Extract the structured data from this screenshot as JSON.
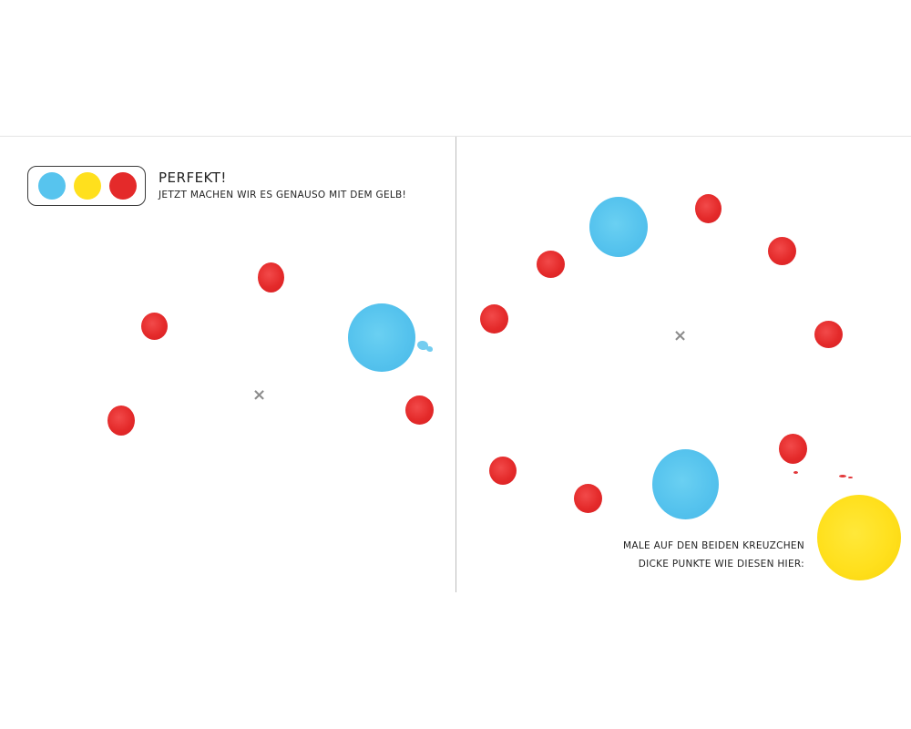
{
  "left_page": {
    "palette": {
      "colors": [
        "#57c4ee",
        "#ffe01d",
        "#e42a2a"
      ]
    },
    "headline": "Perfekt!",
    "subline": "Jetzt machen wir es genauso mit dem Gelb!"
  },
  "right_page": {
    "instruction_line1": "Male auf den beiden Kreuzchen",
    "instruction_line2": "dicke Punkte wie diesen hier:"
  },
  "colors": {
    "red": "#e42a2a",
    "blue": "#57c4ee",
    "yellow": "#ffe01d",
    "cross": "#8c8c8c"
  }
}
